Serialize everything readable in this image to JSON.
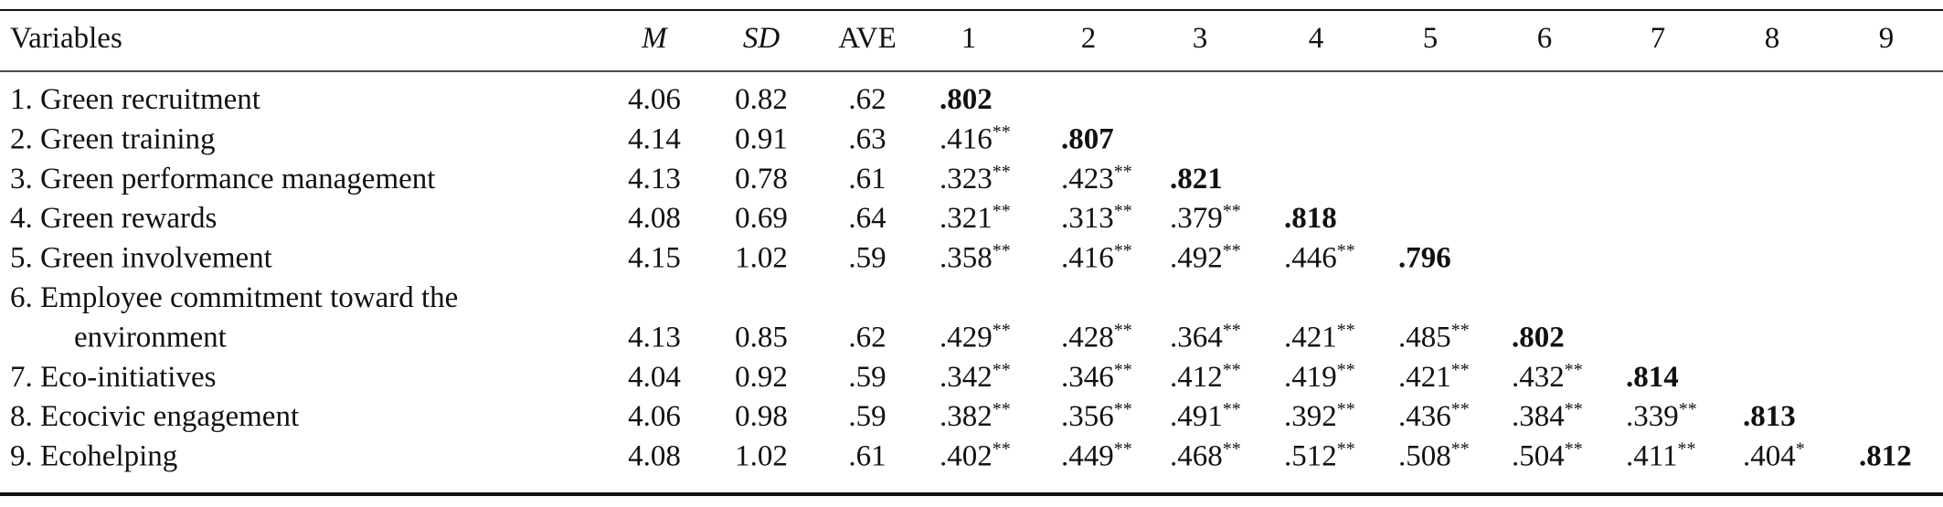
{
  "table": {
    "columns": [
      "Variables",
      "M",
      "SD",
      "AVE",
      "1",
      "2",
      "3",
      "4",
      "5",
      "6",
      "7",
      "8",
      "9"
    ],
    "rows": [
      {
        "label": [
          "1. Green recruitment"
        ],
        "m": "4.06",
        "sd": "0.82",
        "ave": ".62",
        "correlations": [
          {
            "r": ".802"
          }
        ]
      },
      {
        "label": [
          "2. Green training"
        ],
        "m": "4.14",
        "sd": "0.91",
        "ave": ".63",
        "correlations": [
          {
            "r": ".416",
            "sig": "**"
          },
          {
            "r": ".807"
          }
        ]
      },
      {
        "label": [
          "3. Green performance management"
        ],
        "m": "4.13",
        "sd": "0.78",
        "ave": ".61",
        "correlations": [
          {
            "r": ".323",
            "sig": "**"
          },
          {
            "r": ".423",
            "sig": "**"
          },
          {
            "r": ".821"
          }
        ]
      },
      {
        "label": [
          "4. Green rewards"
        ],
        "m": "4.08",
        "sd": "0.69",
        "ave": ".64",
        "correlations": [
          {
            "r": ".321",
            "sig": "**"
          },
          {
            "r": ".313",
            "sig": "**"
          },
          {
            "r": ".379",
            "sig": "**"
          },
          {
            "r": ".818"
          }
        ]
      },
      {
        "label": [
          "5. Green involvement"
        ],
        "m": "4.15",
        "sd": "1.02",
        "ave": ".59",
        "correlations": [
          {
            "r": ".358",
            "sig": "**"
          },
          {
            "r": ".416",
            "sig": "**"
          },
          {
            "r": ".492",
            "sig": "**"
          },
          {
            "r": ".446",
            "sig": "**"
          },
          {
            "r": ".796"
          }
        ]
      },
      {
        "label": [
          "6. Employee commitment toward the",
          "environment"
        ],
        "m": "4.13",
        "sd": "0.85",
        "ave": ".62",
        "correlations": [
          {
            "r": ".429",
            "sig": "**"
          },
          {
            "r": ".428",
            "sig": "**"
          },
          {
            "r": ".364",
            "sig": "**"
          },
          {
            "r": ".421",
            "sig": "**"
          },
          {
            "r": ".485",
            "sig": "**"
          },
          {
            "r": ".802"
          }
        ]
      },
      {
        "label": [
          "7. Eco-initiatives"
        ],
        "m": "4.04",
        "sd": "0.92",
        "ave": ".59",
        "correlations": [
          {
            "r": ".342",
            "sig": "**"
          },
          {
            "r": ".346",
            "sig": "**"
          },
          {
            "r": ".412",
            "sig": "**"
          },
          {
            "r": ".419",
            "sig": "**"
          },
          {
            "r": ".421",
            "sig": "**"
          },
          {
            "r": ".432",
            "sig": "**"
          },
          {
            "r": ".814"
          }
        ]
      },
      {
        "label": [
          "8. Ecocivic engagement"
        ],
        "m": "4.06",
        "sd": "0.98",
        "ave": ".59",
        "correlations": [
          {
            "r": ".382",
            "sig": "**"
          },
          {
            "r": ".356",
            "sig": "**"
          },
          {
            "r": ".491",
            "sig": "**"
          },
          {
            "r": ".392",
            "sig": "**"
          },
          {
            "r": ".436",
            "sig": "**"
          },
          {
            "r": ".384",
            "sig": "**"
          },
          {
            "r": ".339",
            "sig": "**"
          },
          {
            "r": ".813"
          }
        ]
      },
      {
        "label": [
          "9. Ecohelping"
        ],
        "m": "4.08",
        "sd": "1.02",
        "ave": ".61",
        "correlations": [
          {
            "r": ".402",
            "sig": "**"
          },
          {
            "r": ".449",
            "sig": "**"
          },
          {
            "r": ".468",
            "sig": "**"
          },
          {
            "r": ".512",
            "sig": "**"
          },
          {
            "r": ".508",
            "sig": "**"
          },
          {
            "r": ".504",
            "sig": "**"
          },
          {
            "r": ".411",
            "sig": "**"
          },
          {
            "r": ".404",
            "sig": "*"
          },
          {
            "r": ".812"
          }
        ]
      }
    ]
  }
}
